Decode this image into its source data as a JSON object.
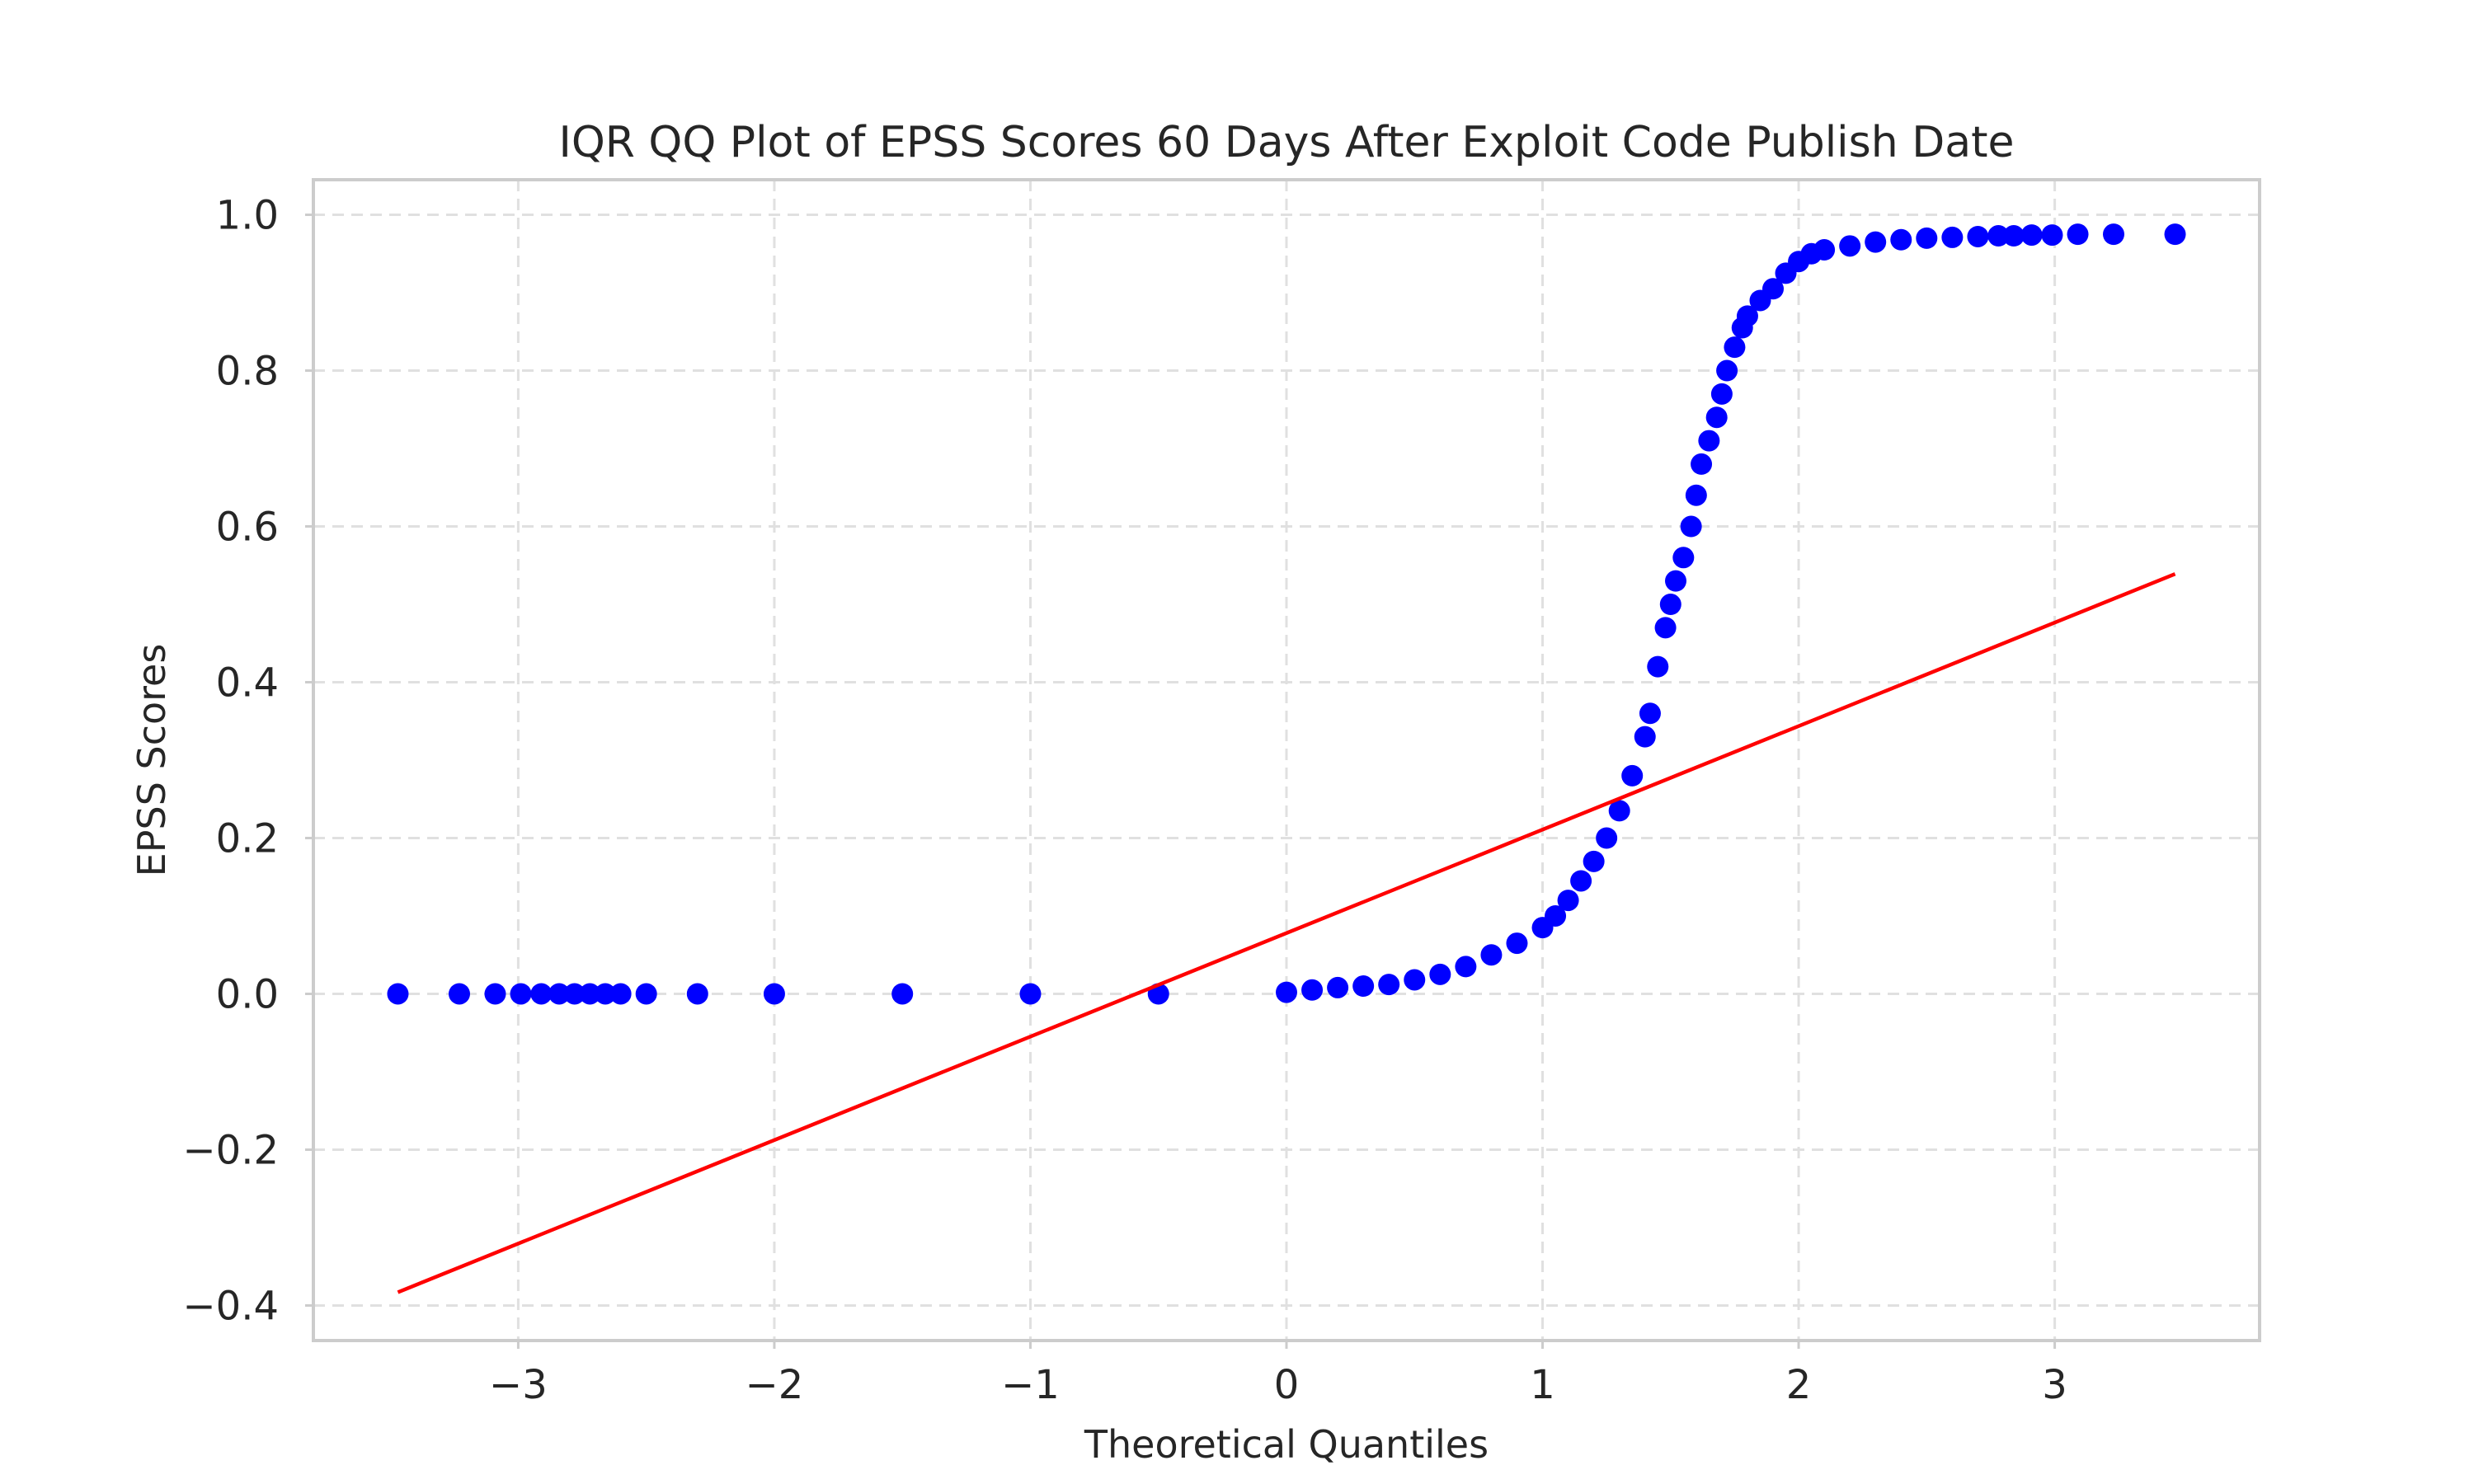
{
  "chart_data": {
    "type": "scatter",
    "title": "IQR QQ Plot of EPSS Scores 60 Days After Exploit Code Publish Date",
    "xlabel": "Theoretical Quantiles",
    "ylabel": "EPSS Scores",
    "xlim": [
      -3.8,
      3.8
    ],
    "ylim": [
      -0.445,
      1.045
    ],
    "xticks": [
      -3,
      -2,
      -1,
      0,
      1,
      2,
      3
    ],
    "xtick_labels": [
      "−3",
      "−2",
      "−1",
      "0",
      "1",
      "2",
      "3"
    ],
    "yticks": [
      -0.4,
      -0.2,
      0.0,
      0.2,
      0.4,
      0.6,
      0.8,
      1.0
    ],
    "ytick_labels": [
      "−0.4",
      "−0.2",
      "0.0",
      "0.2",
      "0.4",
      "0.6",
      "0.8",
      "1.0"
    ],
    "grid": true,
    "series": [
      {
        "kind": "points",
        "color": "#0000ff",
        "x": [
          -3.47,
          -3.23,
          -3.09,
          -2.99,
          -2.91,
          -2.84,
          -2.78,
          -2.72,
          -2.66,
          -2.6,
          -2.5,
          -2.3,
          -2.0,
          -1.5,
          -1.0,
          -0.5,
          0.0,
          0.1,
          0.2,
          0.3,
          0.4,
          0.5,
          0.6,
          0.7,
          0.8,
          0.9,
          1.0,
          1.05,
          1.1,
          1.15,
          1.2,
          1.25,
          1.3,
          1.35,
          1.4,
          1.42,
          1.45,
          1.48,
          1.5,
          1.52,
          1.55,
          1.58,
          1.6,
          1.62,
          1.65,
          1.68,
          1.7,
          1.72,
          1.75,
          1.78,
          1.8,
          1.85,
          1.9,
          1.95,
          2.0,
          2.05,
          2.1,
          2.2,
          2.3,
          2.4,
          2.5,
          2.6,
          2.7,
          2.78,
          2.84,
          2.91,
          2.99,
          3.09,
          3.23,
          3.47
        ],
        "y": [
          0.0,
          0.0,
          0.0,
          0.0,
          0.0,
          0.0,
          0.0,
          0.0,
          0.0,
          0.0,
          0.0,
          0.0,
          0.0,
          0.0,
          0.0,
          0.0,
          0.002,
          0.005,
          0.008,
          0.01,
          0.012,
          0.018,
          0.025,
          0.035,
          0.05,
          0.065,
          0.085,
          0.1,
          0.12,
          0.145,
          0.17,
          0.2,
          0.235,
          0.28,
          0.33,
          0.36,
          0.42,
          0.47,
          0.5,
          0.53,
          0.56,
          0.6,
          0.64,
          0.68,
          0.71,
          0.74,
          0.77,
          0.8,
          0.83,
          0.855,
          0.87,
          0.89,
          0.905,
          0.925,
          0.94,
          0.95,
          0.955,
          0.96,
          0.965,
          0.968,
          0.97,
          0.971,
          0.972,
          0.973,
          0.973,
          0.974,
          0.974,
          0.975,
          0.975,
          0.975
        ]
      },
      {
        "kind": "line",
        "color": "#ff0000",
        "x": [
          -3.47,
          3.47
        ],
        "y": [
          -0.383,
          0.539
        ]
      }
    ]
  }
}
